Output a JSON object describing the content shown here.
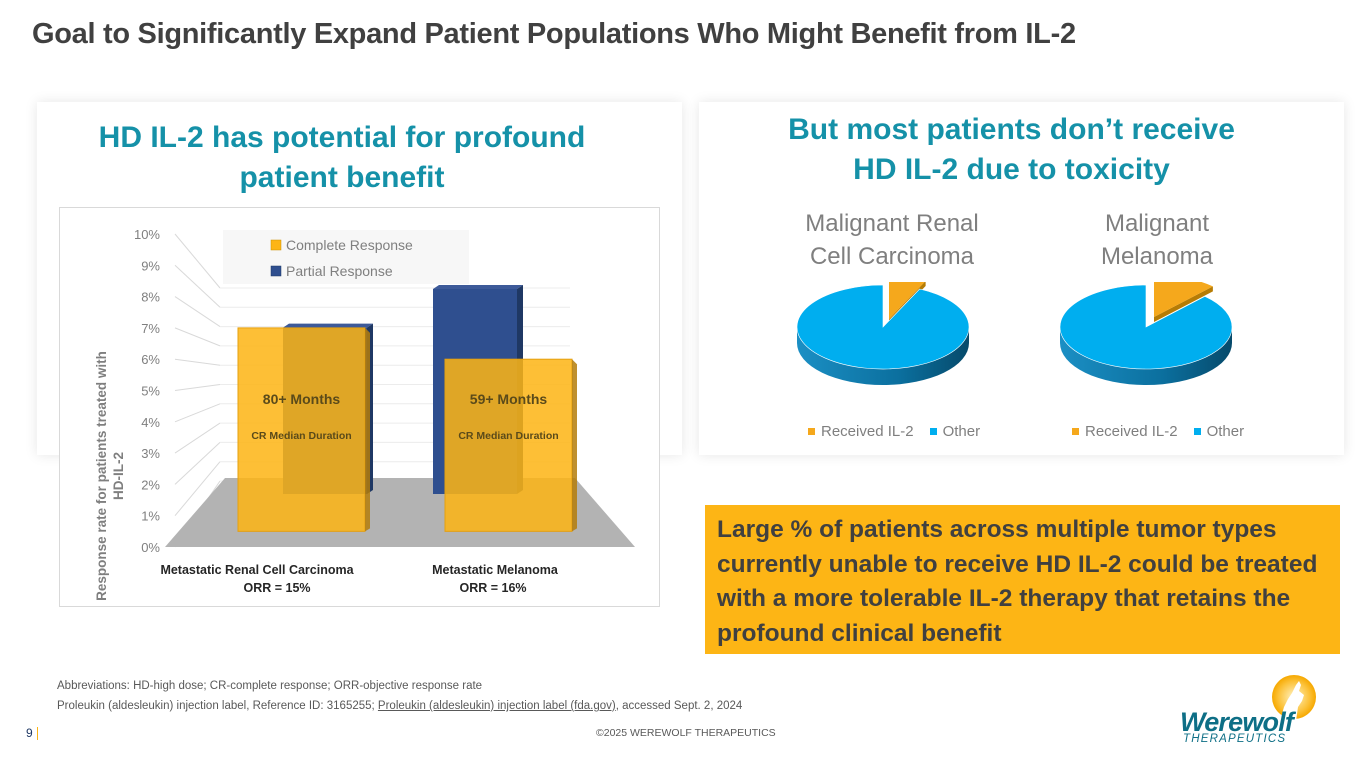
{
  "slide": {
    "title": "Goal to Significantly Expand Patient Populations Who Might Benefit from IL-2",
    "page_number": "9",
    "copyright": "©2025 WEREWOLF THERAPEUTICS"
  },
  "left_panel": {
    "heading_line1": "HD IL-2 has potential for profound",
    "heading_line2": "patient benefit"
  },
  "right_panel": {
    "heading_line1": "But most patients don’t receive",
    "heading_line2": "HD IL-2 due to toxicity"
  },
  "callout": {
    "text": "Large % of patients across multiple tumor types currently unable to receive HD IL-2 could be treated with a more tolerable IL-2 therapy that retains the profound clinical benefit"
  },
  "footnotes": {
    "line1": "Abbreviations: HD-high dose; CR-complete response; ORR-objective response rate",
    "line2_prefix": "Proleukin (aldesleukin) injection label, Reference ID: 3165255; ",
    "line2_link": "Proleukin (aldesleukin) injection label (fda.gov)",
    "line2_suffix": ", accessed Sept. 2, 2024"
  },
  "logo": {
    "name": "Werewolf",
    "subtitle": "THERAPEUTICS"
  },
  "colors": {
    "heading_teal": "#1591a8",
    "complete_response": "#fdb515",
    "partial_response": "#2f4f8f",
    "received_il2": "#f5a81c",
    "other": "#00aeef",
    "callout_bg": "#fdb515"
  },
  "chart_data": [
    {
      "type": "bar",
      "style": "3d-clustered",
      "title": "",
      "xlabel": "",
      "ylabel": "Response rate for patients treated with HD-IL-2",
      "ylim": [
        0,
        10
      ],
      "yticks": [
        "0%",
        "1%",
        "2%",
        "3%",
        "4%",
        "5%",
        "6%",
        "7%",
        "8%",
        "9%",
        "10%"
      ],
      "categories": [
        "Metastatic Renal Cell Carcinoma",
        "Metastatic Melanoma"
      ],
      "category_sublabels": [
        "ORR = 15%",
        "ORR = 16%"
      ],
      "series": [
        {
          "name": "Complete Response",
          "values": [
            7,
            6
          ],
          "color": "#fdb515"
        },
        {
          "name": "Partial Response",
          "values": [
            8,
            10
          ],
          "color": "#2f4f8f"
        }
      ],
      "bar_annotations": [
        {
          "headline": "80+ Months",
          "subtext": "CR Median Duration"
        },
        {
          "headline": "59+ Months",
          "subtext": "CR Median Duration"
        }
      ],
      "legend": "top-center",
      "grid": true
    },
    {
      "type": "pie",
      "style": "3d",
      "title": "Malignant Renal Cell Carcinoma",
      "title_line1": "Malignant Renal",
      "title_line2": "Cell Carcinoma",
      "labels": [
        "Received IL-2",
        "Other"
      ],
      "values": [
        7,
        93
      ],
      "colors": [
        "#f5a81c",
        "#00aeef"
      ],
      "legend": "bottom"
    },
    {
      "type": "pie",
      "style": "3d",
      "title": "Malignant Melanoma",
      "title_line1": "Malignant",
      "title_line2": "Melanoma",
      "labels": [
        "Received IL-2",
        "Other"
      ],
      "values": [
        12,
        88
      ],
      "colors": [
        "#f5a81c",
        "#00aeef"
      ],
      "legend": "bottom"
    }
  ]
}
